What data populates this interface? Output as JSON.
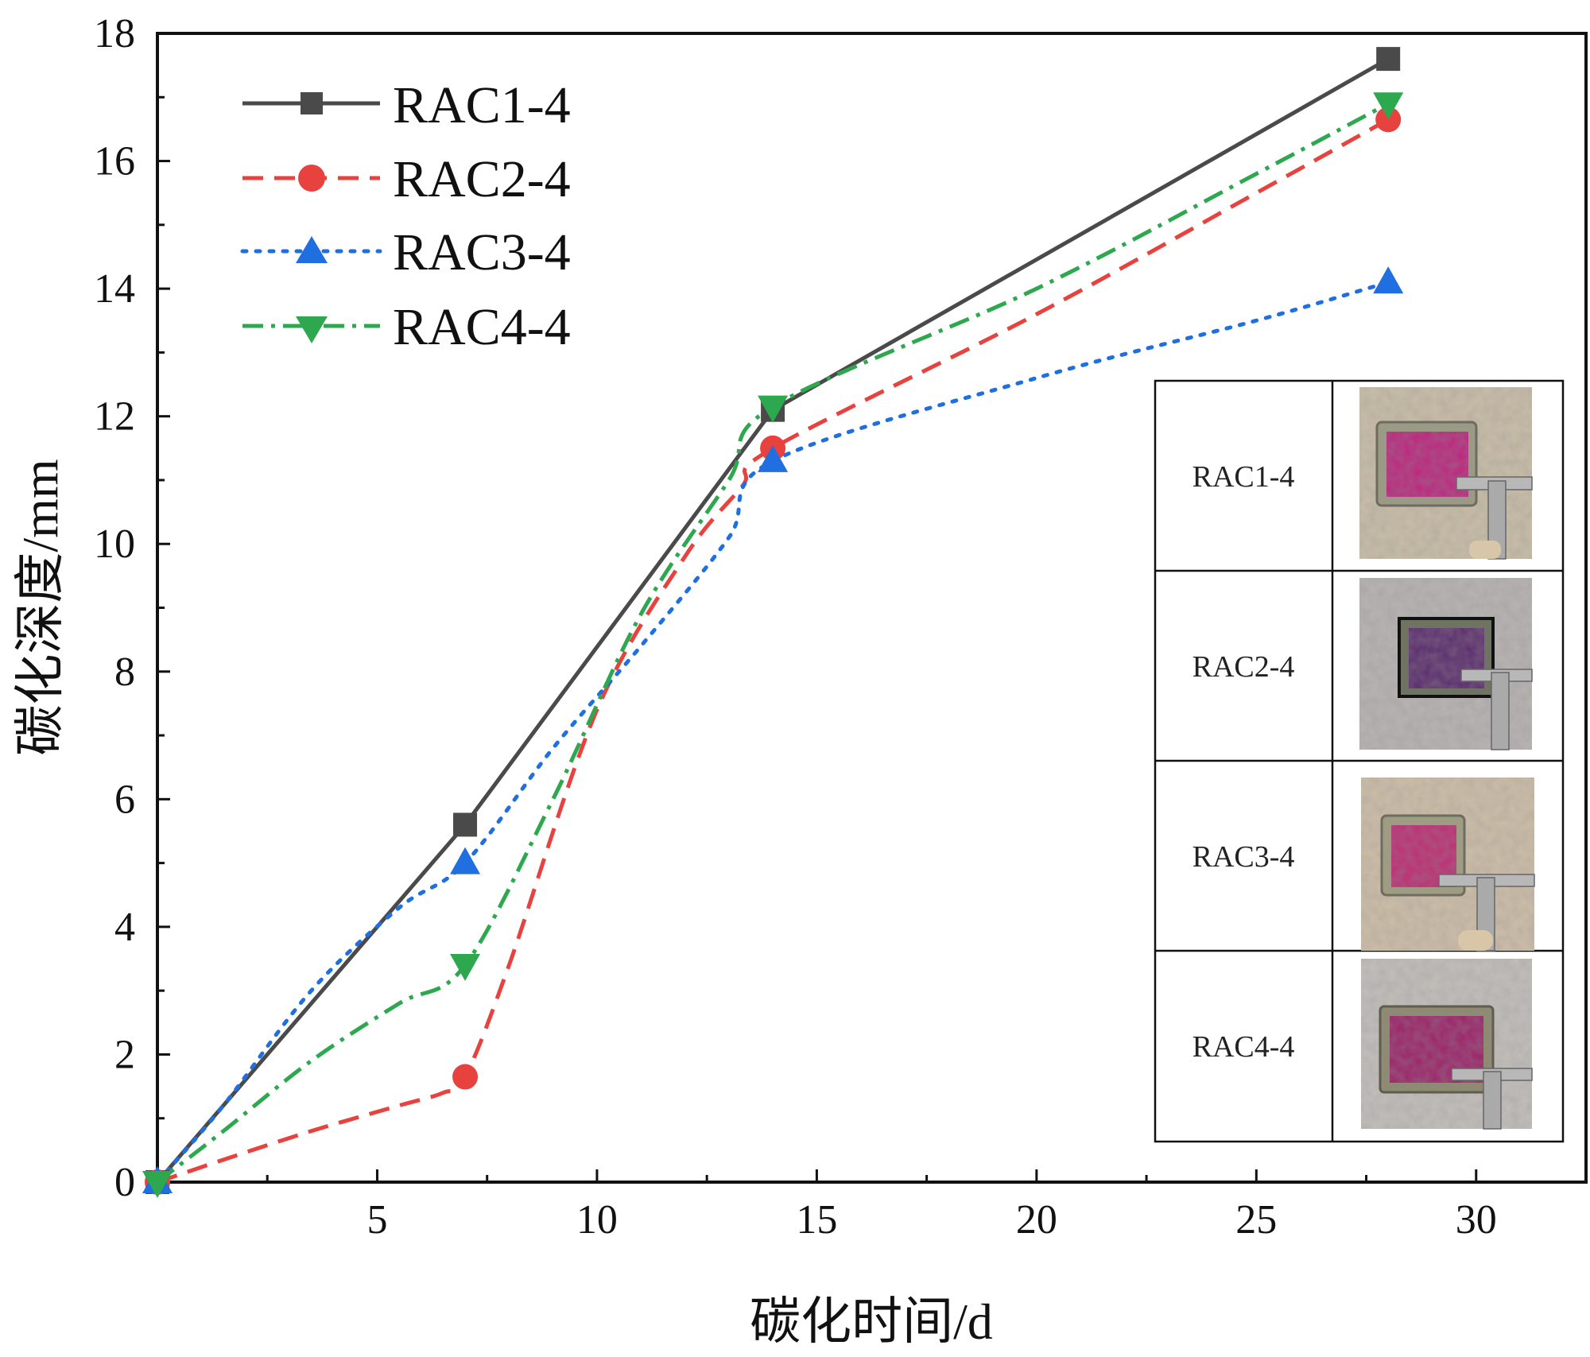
{
  "chart_data": {
    "type": "line",
    "title": "",
    "xlabel": "碳化时间/d",
    "ylabel": "碳化深度/mm",
    "xlim": [
      0,
      32.5
    ],
    "ylim": [
      0,
      18
    ],
    "x_ticks": [
      5,
      10,
      15,
      20,
      25,
      30
    ],
    "y_ticks": [
      0,
      2,
      4,
      6,
      8,
      10,
      12,
      14,
      16,
      18
    ],
    "x": [
      0,
      7,
      14,
      28
    ],
    "series": [
      {
        "name": "RAC1-4",
        "values": [
          0,
          5.6,
          12.1,
          17.6
        ],
        "color": "#4a4a4a",
        "marker": "square",
        "line_style": "solid"
      },
      {
        "name": "RAC2-4",
        "values": [
          0,
          1.65,
          11.5,
          16.65
        ],
        "color": "#e8423f",
        "marker": "circle",
        "line_style": "dashed",
        "curve": [
          [
            0,
            0
          ],
          [
            1.5,
            0.35
          ],
          [
            3.5,
            0.8
          ],
          [
            5.5,
            1.2
          ],
          [
            6.5,
            1.4
          ],
          [
            7,
            1.65
          ],
          [
            8,
            3.4
          ],
          [
            10,
            7.4
          ],
          [
            12,
            9.8
          ],
          [
            13.3,
            10.9
          ],
          [
            14,
            11.5
          ],
          [
            20,
            13.6
          ],
          [
            25,
            15.5
          ],
          [
            28,
            16.65
          ]
        ]
      },
      {
        "name": "RAC3-4",
        "values": [
          0,
          5.0,
          11.3,
          14.1
        ],
        "color": "#1f6fe0",
        "marker": "triangle-up",
        "line_style": "dotted",
        "curve": [
          [
            0,
            0
          ],
          [
            1.5,
            1.2
          ],
          [
            3.5,
            3
          ],
          [
            5.5,
            4.3
          ],
          [
            7,
            5.0
          ],
          [
            9,
            6.8
          ],
          [
            11,
            8.4
          ],
          [
            13,
            10.1
          ],
          [
            14,
            11.3
          ],
          [
            20,
            12.6
          ],
          [
            25,
            13.5
          ],
          [
            28,
            14.1
          ]
        ]
      },
      {
        "name": "RAC4-4",
        "values": [
          0,
          3.4,
          12.15,
          16.9
        ],
        "color": "#2ea84f",
        "marker": "triangle-down",
        "line_style": "dashdot",
        "curve": [
          [
            0,
            0
          ],
          [
            1.5,
            0.8
          ],
          [
            3.5,
            1.9
          ],
          [
            5.5,
            2.8
          ],
          [
            7,
            3.4
          ],
          [
            9,
            6.0
          ],
          [
            11,
            8.9
          ],
          [
            13,
            11.0
          ],
          [
            14,
            12.15
          ],
          [
            20,
            14.0
          ],
          [
            25,
            15.8
          ],
          [
            28,
            16.9
          ]
        ]
      }
    ],
    "legend_position": "top-left",
    "inset_table": {
      "rows": [
        {
          "label": "RAC1-4",
          "image": "RAC1-4 specimen photo with caliper"
        },
        {
          "label": "RAC2-4",
          "image": "RAC2-4 specimen photo with caliper"
        },
        {
          "label": "RAC3-4",
          "image": "RAC3-4 specimen photo with caliper"
        },
        {
          "label": "RAC4-4",
          "image": "RAC4-4 specimen photo with caliper"
        }
      ]
    }
  }
}
